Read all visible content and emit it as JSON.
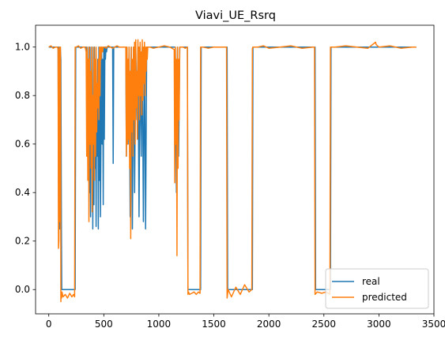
{
  "chart_data": {
    "type": "line",
    "title": "Viavi_UE_Rsrq",
    "xlabel": "",
    "ylabel": "",
    "xlim": [
      -120,
      3500
    ],
    "ylim": [
      -0.1,
      1.09
    ],
    "xticks": [
      0,
      500,
      1000,
      1500,
      2000,
      2500,
      3000,
      3500
    ],
    "xtick_labels": [
      "0",
      "500",
      "1000",
      "1500",
      "2000",
      "2500",
      "3000",
      "3500"
    ],
    "yticks": [
      0.0,
      0.2,
      0.4,
      0.6,
      0.8,
      1.0
    ],
    "ytick_labels": [
      "0.0",
      "0.2",
      "0.4",
      "0.6",
      "0.8",
      "1.0"
    ],
    "grid": false,
    "legend_position": "lower-right",
    "series": [
      {
        "name": "real",
        "color": "#1f77b4",
        "x": [
          0,
          85,
          90,
          90,
          95,
          100,
          105,
          110,
          115,
          118,
          125,
          130,
          240,
          245,
          340,
          350,
          360,
          365,
          370,
          375,
          380,
          385,
          390,
          395,
          400,
          405,
          410,
          415,
          420,
          425,
          430,
          435,
          440,
          445,
          450,
          455,
          460,
          465,
          470,
          480,
          485,
          490,
          495,
          500,
          505,
          510,
          515,
          520,
          525,
          530,
          540,
          560,
          580,
          585,
          590,
          700,
          705,
          710,
          720,
          730,
          740,
          750,
          760,
          770,
          780,
          790,
          800,
          810,
          820,
          830,
          840,
          850,
          860,
          870,
          880,
          890,
          900,
          1150,
          1160,
          1170,
          1180,
          1190,
          1200,
          1260,
          1265,
          1380,
          1385,
          1620,
          1625,
          1850,
          1855,
          2420,
          2425,
          2560,
          2565,
          3340
        ],
        "y": [
          1.0,
          1.0,
          0.3,
          1.0,
          0.9,
          0.25,
          1.0,
          0.95,
          0.25,
          0.0,
          0.0,
          0.0,
          0.0,
          1.0,
          1.0,
          0.9,
          0.55,
          1.0,
          0.4,
          1.0,
          0.3,
          0.9,
          0.5,
          1.0,
          0.25,
          0.8,
          0.35,
          1.0,
          0.5,
          0.95,
          0.26,
          0.85,
          0.55,
          0.95,
          0.25,
          1.0,
          0.45,
          0.9,
          0.3,
          1.0,
          0.6,
          0.95,
          0.35,
          1.0,
          0.62,
          1.0,
          0.95,
          1.0,
          0.98,
          1.0,
          1.0,
          1.0,
          1.0,
          0.52,
          1.0,
          1.0,
          0.55,
          1.0,
          0.6,
          1.0,
          0.3,
          1.0,
          0.25,
          1.0,
          0.4,
          1.0,
          0.7,
          1.0,
          0.3,
          1.0,
          0.55,
          1.0,
          0.28,
          1.0,
          0.25,
          1.0,
          1.0,
          1.0,
          0.4,
          1.0,
          0.55,
          1.0,
          1.0,
          1.0,
          0.0,
          0.0,
          1.0,
          1.0,
          0.0,
          0.0,
          1.0,
          1.0,
          0.0,
          0.0,
          1.0,
          1.0
        ]
      },
      {
        "name": "predicted",
        "color": "#ff7f0e",
        "x": [
          0,
          20,
          40,
          60,
          80,
          85,
          88,
          92,
          96,
          100,
          103,
          106,
          110,
          113,
          116,
          120,
          130,
          150,
          170,
          190,
          210,
          225,
          235,
          240,
          250,
          270,
          290,
          310,
          330,
          340,
          345,
          350,
          355,
          360,
          365,
          370,
          375,
          380,
          385,
          390,
          395,
          400,
          405,
          410,
          415,
          420,
          425,
          430,
          435,
          440,
          445,
          450,
          455,
          460,
          465,
          470,
          475,
          480,
          485,
          490,
          495,
          500,
          510,
          520,
          540,
          560,
          580,
          600,
          620,
          640,
          660,
          680,
          700,
          705,
          710,
          715,
          720,
          725,
          730,
          735,
          740,
          745,
          750,
          755,
          760,
          765,
          770,
          775,
          780,
          785,
          790,
          795,
          800,
          805,
          810,
          815,
          820,
          825,
          830,
          835,
          840,
          845,
          850,
          855,
          860,
          865,
          870,
          875,
          880,
          885,
          890,
          895,
          900,
          920,
          950,
          1000,
          1050,
          1100,
          1140,
          1145,
          1150,
          1155,
          1160,
          1165,
          1170,
          1175,
          1180,
          1185,
          1190,
          1200,
          1220,
          1240,
          1260,
          1265,
          1270,
          1280,
          1300,
          1320,
          1340,
          1360,
          1375,
          1380,
          1400,
          1450,
          1500,
          1550,
          1600,
          1615,
          1620,
          1630,
          1660,
          1700,
          1740,
          1780,
          1820,
          1845,
          1850,
          1855,
          1900,
          1950,
          2000,
          2100,
          2200,
          2300,
          2400,
          2415,
          2420,
          2440,
          2480,
          2520,
          2555,
          2560,
          2600,
          2700,
          2800,
          2900,
          2970,
          2975,
          3000,
          3100,
          3200,
          3300,
          3340
        ],
        "y": [
          1.0,
          1.005,
          0.995,
          1.0,
          1.0,
          0.99,
          0.17,
          0.2,
          1.0,
          0.95,
          0.28,
          1.0,
          -0.05,
          -0.02,
          -0.035,
          -0.01,
          -0.03,
          -0.02,
          -0.035,
          -0.015,
          -0.03,
          -0.02,
          -0.03,
          1.0,
          1.0,
          1.005,
          0.995,
          1.0,
          1.0,
          0.98,
          0.55,
          1.0,
          0.45,
          0.95,
          0.28,
          1.0,
          0.6,
          0.9,
          0.5,
          1.0,
          0.32,
          0.8,
          0.6,
          1.0,
          0.45,
          0.95,
          0.55,
          1.0,
          0.65,
          0.85,
          0.75,
          0.95,
          0.7,
          1.0,
          0.8,
          1.0,
          0.95,
          1.0,
          1.0,
          0.98,
          1.0,
          1.0,
          1.0,
          0.995,
          1.005,
          1.0,
          0.995,
          1.0,
          1.005,
          1.0,
          1.0,
          1.0,
          1.0,
          0.55,
          1.0,
          0.6,
          0.95,
          0.62,
          1.0,
          0.5,
          0.9,
          0.21,
          1.0,
          0.65,
          0.95,
          0.55,
          1.0,
          0.7,
          1.02,
          0.6,
          1.03,
          0.75,
          0.9,
          0.62,
          1.03,
          0.8,
          1.0,
          0.7,
          1.02,
          0.8,
          0.98,
          0.72,
          1.03,
          0.78,
          1.0,
          0.85,
          1.02,
          0.8,
          1.0,
          0.9,
          1.0,
          0.95,
          1.0,
          1.0,
          0.995,
          1.0,
          1.005,
          1.0,
          0.99,
          0.44,
          1.0,
          0.6,
          0.95,
          0.14,
          1.0,
          0.5,
          0.95,
          0.7,
          1.0,
          1.0,
          1.0,
          0.995,
          1.0,
          -0.02,
          -0.01,
          -0.02,
          -0.015,
          -0.01,
          -0.02,
          -0.01,
          -0.015,
          1.0,
          1.0,
          0.995,
          1.0,
          1.0,
          1.0,
          1.0,
          -0.035,
          0.0,
          -0.03,
          0.01,
          -0.02,
          0.02,
          -0.01,
          0.0,
          0.995,
          1.0,
          1.0,
          1.005,
          0.995,
          1.0,
          1.005,
          0.995,
          1.0,
          1.0,
          -0.02,
          -0.01,
          -0.015,
          -0.01,
          -0.02,
          1.0,
          1.0,
          1.005,
          1.0,
          0.995,
          1.02,
          1.01,
          1.0,
          1.005,
          0.995,
          1.0,
          1.0
        ]
      }
    ]
  }
}
